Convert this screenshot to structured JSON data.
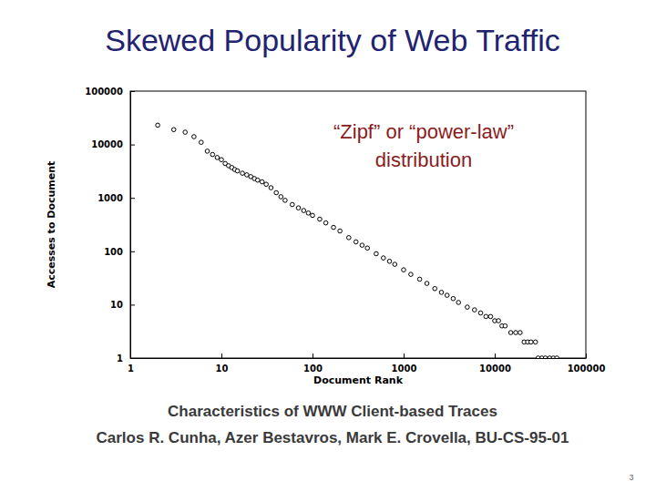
{
  "chart_data": {
    "type": "scatter",
    "title": "Skewed Popularity of Web Traffic",
    "annotation": [
      "“Zipf” or “power-law”",
      "distribution"
    ],
    "x_label": "Document Rank",
    "y_label": "Accesses to Document",
    "x": [
      2,
      3,
      4,
      5,
      6,
      7,
      8,
      9,
      10,
      11,
      12,
      13,
      14,
      15,
      17,
      19,
      21,
      23,
      25,
      28,
      31,
      35,
      40,
      45,
      50,
      60,
      70,
      80,
      90,
      100,
      120,
      140,
      170,
      200,
      250,
      300,
      350,
      400,
      500,
      600,
      700,
      800,
      1000,
      1200,
      1500,
      1800,
      2200,
      2600,
      3000,
      3500,
      4000,
      5000,
      6000,
      7000,
      8000,
      9000,
      10000,
      11000,
      12000,
      13000,
      15000,
      17000,
      19000,
      21000,
      23000,
      25000,
      28000,
      30000,
      33000,
      36000,
      40000,
      44000,
      48000
    ],
    "values": [
      23000,
      19000,
      17000,
      14000,
      11000,
      7500,
      6500,
      5700,
      5200,
      4400,
      4000,
      3700,
      3400,
      3200,
      2900,
      2700,
      2500,
      2300,
      2150,
      2000,
      1800,
      1550,
      1250,
      1050,
      900,
      750,
      650,
      580,
      520,
      470,
      400,
      340,
      280,
      240,
      180,
      150,
      130,
      115,
      90,
      75,
      65,
      57,
      45,
      37,
      30,
      25,
      20,
      17,
      15,
      13,
      11,
      9,
      8,
      7,
      6,
      6,
      5,
      5,
      4,
      4,
      3,
      3,
      3,
      2,
      2,
      2,
      2,
      1,
      1,
      1,
      1,
      1,
      1
    ],
    "xlim": [
      1,
      100000
    ],
    "ylim": [
      1,
      100000
    ],
    "xticks": [
      1,
      10,
      100,
      1000,
      10000,
      100000
    ],
    "yticks": [
      1,
      10,
      100,
      1000,
      10000,
      100000
    ],
    "log": true,
    "grid": false,
    "marker": "circle",
    "color": "#000000"
  },
  "caption": [
    "Characteristics of WWW Client-based Traces",
    "Carlos R. Cunha, Azer Bestavros, Mark E. Crovella, BU-CS-95-01"
  ],
  "page_number": "3"
}
